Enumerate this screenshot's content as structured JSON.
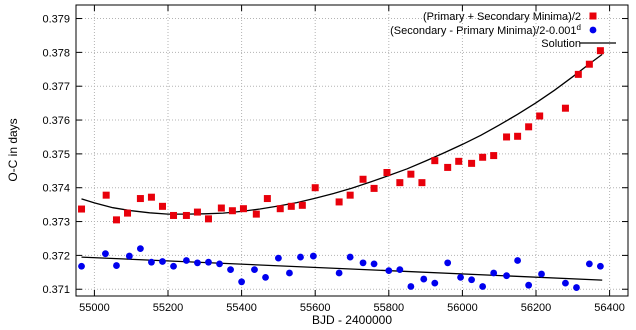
{
  "chart_data": {
    "type": "scatter",
    "xlabel": "BJD - 2400000",
    "ylabel": "O-C in days",
    "xlim": [
      54950,
      56450
    ],
    "ylim": [
      0.3708,
      0.3794
    ],
    "xticks": [
      55000,
      55200,
      55400,
      55600,
      55800,
      56000,
      56200,
      56400
    ],
    "yticks": [
      0.371,
      0.372,
      0.373,
      0.374,
      0.375,
      0.376,
      0.377,
      0.378,
      0.379
    ],
    "legend_position": "top-right",
    "legend": [
      {
        "label": "(Primary + Secondary Minima)/2",
        "marker": "square",
        "color": "#e8000b"
      },
      {
        "label": "(Secondary - Primary Minima)/2-0.001",
        "superscript": "d",
        "marker": "circle",
        "color": "#0000ee"
      },
      {
        "label": "Solution",
        "marker": "line",
        "color": "#000000"
      }
    ],
    "series": [
      {
        "name": "(Primary + Secondary Minima)/2",
        "marker": "square",
        "color": "#e8000b",
        "points": [
          [
            54965,
            0.37337
          ],
          [
            55032,
            0.37378
          ],
          [
            55060,
            0.37305
          ],
          [
            55090,
            0.37325
          ],
          [
            55125,
            0.37368
          ],
          [
            55155,
            0.37372
          ],
          [
            55185,
            0.37345
          ],
          [
            55215,
            0.37318
          ],
          [
            55250,
            0.37318
          ],
          [
            55280,
            0.37328
          ],
          [
            55310,
            0.37308
          ],
          [
            55345,
            0.3734
          ],
          [
            55375,
            0.37332
          ],
          [
            55405,
            0.37338
          ],
          [
            55440,
            0.37322
          ],
          [
            55470,
            0.37368
          ],
          [
            55505,
            0.37338
          ],
          [
            55535,
            0.37345
          ],
          [
            55565,
            0.37348
          ],
          [
            55600,
            0.374
          ],
          [
            55665,
            0.37358
          ],
          [
            55695,
            0.37378
          ],
          [
            55730,
            0.37425
          ],
          [
            55760,
            0.37398
          ],
          [
            55795,
            0.37445
          ],
          [
            55830,
            0.37415
          ],
          [
            55860,
            0.3744
          ],
          [
            55890,
            0.37415
          ],
          [
            55925,
            0.3748
          ],
          [
            55960,
            0.3746
          ],
          [
            55990,
            0.37478
          ],
          [
            56025,
            0.37472
          ],
          [
            56055,
            0.3749
          ],
          [
            56085,
            0.37495
          ],
          [
            56120,
            0.3755
          ],
          [
            56150,
            0.37552
          ],
          [
            56180,
            0.3758
          ],
          [
            56210,
            0.37612
          ],
          [
            56280,
            0.37635
          ],
          [
            56315,
            0.37735
          ],
          [
            56345,
            0.37765
          ],
          [
            56375,
            0.37805
          ]
        ]
      },
      {
        "name": "(Secondary - Primary Minima)/2-0.001",
        "marker": "circle",
        "color": "#0000ee",
        "points": [
          [
            54965,
            0.37168
          ],
          [
            55030,
            0.37205
          ],
          [
            55060,
            0.3717
          ],
          [
            55095,
            0.37198
          ],
          [
            55125,
            0.3722
          ],
          [
            55155,
            0.3718
          ],
          [
            55185,
            0.37182
          ],
          [
            55215,
            0.37168
          ],
          [
            55250,
            0.37185
          ],
          [
            55280,
            0.37178
          ],
          [
            55310,
            0.3718
          ],
          [
            55340,
            0.37175
          ],
          [
            55370,
            0.37158
          ],
          [
            55400,
            0.37122
          ],
          [
            55435,
            0.37158
          ],
          [
            55465,
            0.37135
          ],
          [
            55500,
            0.37192
          ],
          [
            55530,
            0.37148
          ],
          [
            55560,
            0.37195
          ],
          [
            55595,
            0.37198
          ],
          [
            55665,
            0.37148
          ],
          [
            55695,
            0.37195
          ],
          [
            55730,
            0.37178
          ],
          [
            55760,
            0.37175
          ],
          [
            55800,
            0.37155
          ],
          [
            55830,
            0.37158
          ],
          [
            55860,
            0.37108
          ],
          [
            55895,
            0.3713
          ],
          [
            55925,
            0.37118
          ],
          [
            55960,
            0.37178
          ],
          [
            55995,
            0.37135
          ],
          [
            56025,
            0.37128
          ],
          [
            56055,
            0.37108
          ],
          [
            56085,
            0.37148
          ],
          [
            56120,
            0.3714
          ],
          [
            56150,
            0.37185
          ],
          [
            56180,
            0.37112
          ],
          [
            56215,
            0.37145
          ],
          [
            56280,
            0.37118
          ],
          [
            56310,
            0.37105
          ],
          [
            56345,
            0.37175
          ],
          [
            56375,
            0.37168
          ]
        ]
      },
      {
        "name": "Solution",
        "marker": "line",
        "color": "#000000",
        "points": [
          [
            54965,
            0.37367
          ],
          [
            55000,
            0.37355
          ],
          [
            55050,
            0.37341
          ],
          [
            55100,
            0.37332
          ],
          [
            55150,
            0.37326
          ],
          [
            55200,
            0.37322
          ],
          [
            55250,
            0.37322
          ],
          [
            55300,
            0.37323
          ],
          [
            55350,
            0.37325
          ],
          [
            55400,
            0.3733
          ],
          [
            55450,
            0.37337
          ],
          [
            55500,
            0.37346
          ],
          [
            55550,
            0.37356
          ],
          [
            55600,
            0.37369
          ],
          [
            55650,
            0.37383
          ],
          [
            55700,
            0.37399
          ],
          [
            55750,
            0.37417
          ],
          [
            55800,
            0.37436
          ],
          [
            55850,
            0.37456
          ],
          [
            55900,
            0.37479
          ],
          [
            55950,
            0.37503
          ],
          [
            56000,
            0.37528
          ],
          [
            56050,
            0.37555
          ],
          [
            56100,
            0.37585
          ],
          [
            56150,
            0.37617
          ],
          [
            56200,
            0.37651
          ],
          [
            56250,
            0.37688
          ],
          [
            56300,
            0.37728
          ],
          [
            56350,
            0.3777
          ],
          [
            56380,
            0.37794
          ]
        ]
      },
      {
        "name": "Solution",
        "marker": "line",
        "color": "#000000",
        "points": [
          [
            54965,
            0.37195
          ],
          [
            56380,
            0.37127
          ]
        ]
      }
    ]
  }
}
